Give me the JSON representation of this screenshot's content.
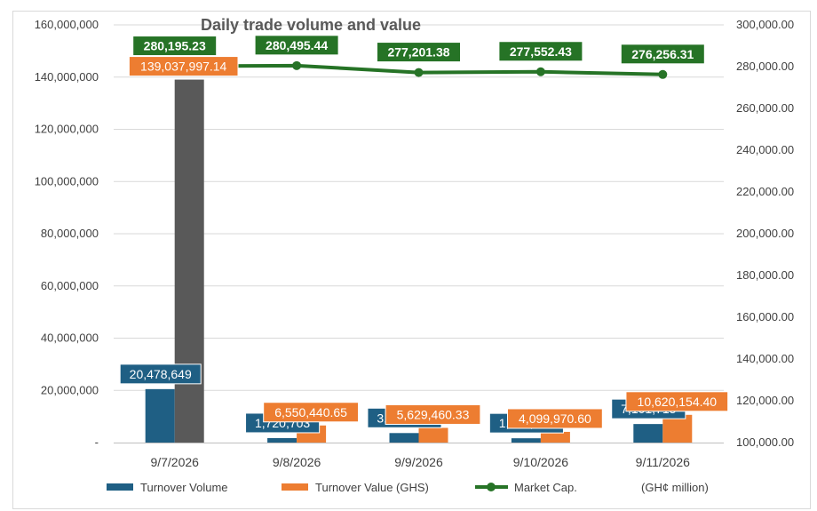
{
  "chart_data": {
    "type": "bar",
    "title": "Daily trade volume and value",
    "categories": [
      "9/7/2026",
      "9/8/2026",
      "9/9/2026",
      "9/10/2026",
      "9/11/2026"
    ],
    "series": [
      {
        "name": "Turnover Volume",
        "type": "bar",
        "axis": "left",
        "color": "#1f5f84",
        "values": [
          20478649,
          1720703,
          3644316,
          1648722,
          7101715
        ],
        "labels": [
          "20,478,649",
          "1,720,703",
          "3,644,316",
          "1,648,722",
          "7,101,715"
        ]
      },
      {
        "name": "Turnover Value (GHS)",
        "type": "bar",
        "axis": "left",
        "color": "#ed7d31",
        "highlight_color": "#595959",
        "values": [
          139037997.14,
          6550440.65,
          5629460.33,
          4099970.6,
          10620154.4
        ],
        "labels": [
          "139,037,997.14",
          "6,550,440.65",
          "5,629,460.33",
          "4,099,970.60",
          "10,620,154.40"
        ]
      },
      {
        "name": "Market Cap.",
        "type": "line",
        "axis": "right",
        "color": "#267326",
        "values": [
          280195.23,
          280495.44,
          277201.38,
          277552.43,
          276256.31
        ],
        "labels": [
          "280,195.23",
          "280,495.44",
          "277,201.38",
          "277,552.43",
          "276,256.31"
        ]
      }
    ],
    "left_axis": {
      "ylim": [
        0,
        160000000
      ],
      "ticks": [
        "-",
        "20,000,000",
        "40,000,000",
        "60,000,000",
        "80,000,000",
        "100,000,000",
        "120,000,000",
        "140,000,000",
        "160,000,000"
      ]
    },
    "right_axis": {
      "ylim": [
        100000,
        300000
      ],
      "ticks": [
        "100,000.00",
        "120,000.00",
        "140,000.00",
        "160,000.00",
        "180,000.00",
        "200,000.00",
        "220,000.00",
        "240,000.00",
        "260,000.00",
        "280,000.00",
        "300,000.00"
      ]
    },
    "unit_note": "(GH¢ million)",
    "legend_position": "bottom",
    "grid": true
  }
}
